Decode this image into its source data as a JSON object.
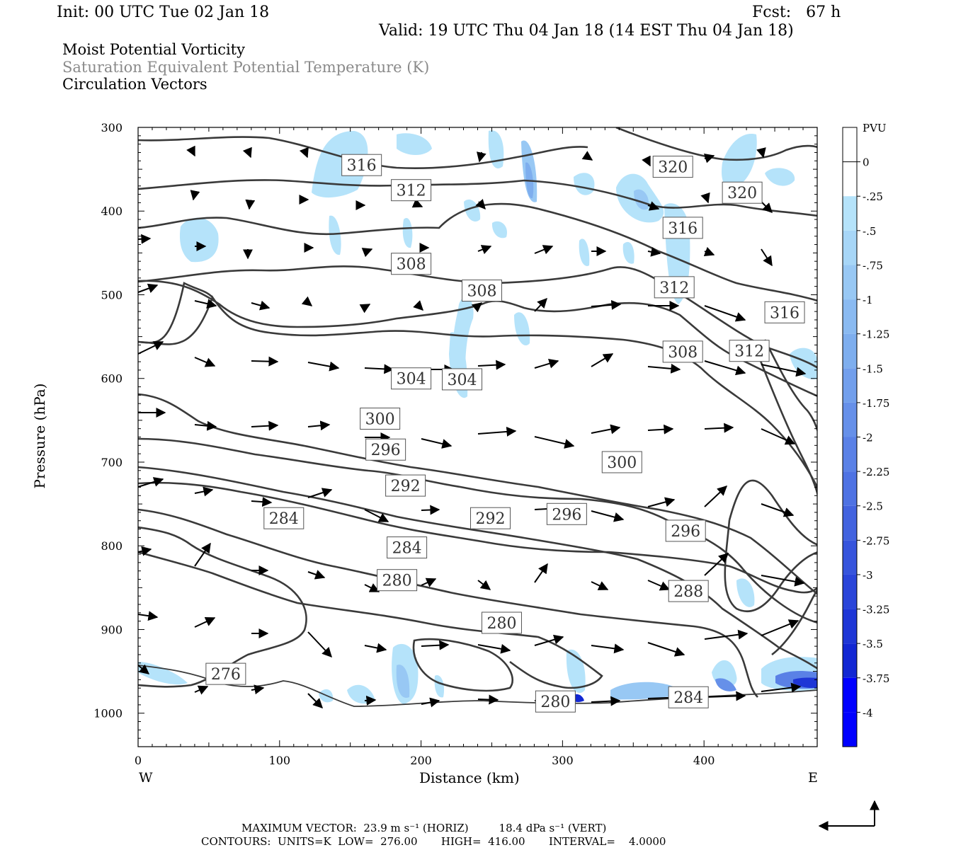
{
  "header": {
    "init": "Init: 00 UTC Tue 02 Jan 18",
    "fcst": "Fcst:   67 h",
    "valid": "Valid: 19 UTC Thu 04 Jan 18 (14 EST Thu 04 Jan 18)",
    "field1": "Moist Potential Vorticity",
    "field2": "Saturation Equivalent Potential Temperature (K)",
    "field3": "Circulation Vectors"
  },
  "footer": {
    "max_vector": "MAXIMUM VECTOR:  23.9 m s⁻¹ (HORIZ)         18.4 dPa s⁻¹ (VERT)",
    "contours": "CONTOURS:  UNITS=K  LOW=  276.00       HIGH=  416.00       INTERVAL=    4.0000"
  },
  "colors": {
    "pv_scale": [
      "#ffffff",
      "#ffffff",
      "#b5e3fa",
      "#a7d6f7",
      "#98c8f4",
      "#8abaf1",
      "#7eaeee",
      "#729fec",
      "#6690e9",
      "#5a81e6",
      "#4e72e3",
      "#4263df",
      "#3654dc",
      "#2a45d9",
      "#1e36d6",
      "#1227d3",
      "#0000ff"
    ],
    "contour": "#3a3a3a"
  },
  "chart_data": {
    "type": "cross-section",
    "xlabel": "Distance (km)",
    "ylabel": "Pressure (hPa)",
    "xlim": [
      0,
      480
    ],
    "ylim": [
      1040,
      300
    ],
    "x_ticks": [
      0,
      100,
      200,
      300,
      400
    ],
    "y_ticks": [
      300,
      400,
      500,
      600,
      700,
      800,
      900,
      1000
    ],
    "x_end_labels": {
      "left": "W",
      "right": "E"
    },
    "colorbar": {
      "title": "PVU",
      "levels": [
        "0",
        "-.25",
        "-.5",
        "-.75",
        "-1",
        "-1.25",
        "-1.5",
        "-1.75",
        "-2",
        "-2.25",
        "-2.5",
        "-2.75",
        "-3",
        "-3.25",
        "-3.5",
        "-3.75",
        "-4"
      ]
    },
    "contour_labels": [
      {
        "text": "316",
        "x": 158,
        "p": 345
      },
      {
        "text": "312",
        "x": 193,
        "p": 375
      },
      {
        "text": "320",
        "x": 378,
        "p": 347
      },
      {
        "text": "320",
        "x": 427,
        "p": 378
      },
      {
        "text": "316",
        "x": 385,
        "p": 420
      },
      {
        "text": "316",
        "x": 457,
        "p": 521
      },
      {
        "text": "312",
        "x": 379,
        "p": 491
      },
      {
        "text": "308",
        "x": 193,
        "p": 463
      },
      {
        "text": "308",
        "x": 243,
        "p": 495
      },
      {
        "text": "308",
        "x": 385,
        "p": 568
      },
      {
        "text": "312",
        "x": 432,
        "p": 567
      },
      {
        "text": "304",
        "x": 193,
        "p": 600
      },
      {
        "text": "304",
        "x": 229,
        "p": 601
      },
      {
        "text": "300",
        "x": 171,
        "p": 648
      },
      {
        "text": "296",
        "x": 175,
        "p": 685
      },
      {
        "text": "300",
        "x": 342,
        "p": 700
      },
      {
        "text": "292",
        "x": 189,
        "p": 728
      },
      {
        "text": "284",
        "x": 103,
        "p": 767
      },
      {
        "text": "292",
        "x": 249,
        "p": 767
      },
      {
        "text": "296",
        "x": 303,
        "p": 762
      },
      {
        "text": "296",
        "x": 387,
        "p": 782
      },
      {
        "text": "284",
        "x": 190,
        "p": 802
      },
      {
        "text": "280",
        "x": 183,
        "p": 841
      },
      {
        "text": "288",
        "x": 389,
        "p": 854
      },
      {
        "text": "280",
        "x": 257,
        "p": 892
      },
      {
        "text": "276",
        "x": 62,
        "p": 953
      },
      {
        "text": "280",
        "x": 295,
        "p": 986
      },
      {
        "text": "284",
        "x": 389,
        "p": 981
      }
    ],
    "max_vector_horiz_m_s": 23.9,
    "max_vector_vert_dPa_s": 18.4,
    "contour_low": 276.0,
    "contour_high": 416.0,
    "contour_interval": 4.0
  }
}
